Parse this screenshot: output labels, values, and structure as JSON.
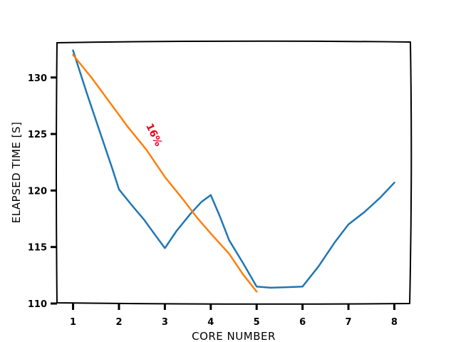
{
  "chart_data": {
    "type": "line",
    "title": "",
    "xlabel": "CORE NUMBER",
    "ylabel": "ELAPSED TIME [S]",
    "xlim": [
      0.65,
      8.35
    ],
    "ylim": [
      110,
      133.2
    ],
    "xticks": [
      1,
      2,
      3,
      4,
      5,
      6,
      7,
      8
    ],
    "yticks": [
      110,
      115,
      120,
      125,
      130
    ],
    "grid": false,
    "series": [
      {
        "color": "#1f77b4",
        "points": [
          [
            1,
            132.4
          ],
          [
            1.3,
            128.6
          ],
          [
            1.6,
            125
          ],
          [
            1.85,
            122
          ],
          [
            2,
            120.1
          ],
          [
            2.3,
            118.6
          ],
          [
            2.55,
            117.4
          ],
          [
            2.8,
            116.0
          ],
          [
            3,
            114.9
          ],
          [
            3.25,
            116.4
          ],
          [
            3.55,
            117.9
          ],
          [
            3.8,
            119
          ],
          [
            4,
            119.6
          ],
          [
            4.2,
            117.7
          ],
          [
            4.4,
            115.6
          ],
          [
            4.7,
            113.6
          ],
          [
            5,
            111.5
          ],
          [
            5.3,
            111.4
          ],
          [
            5.7,
            111.45
          ],
          [
            6,
            111.5
          ],
          [
            6.35,
            113.3
          ],
          [
            6.7,
            115.4
          ],
          [
            7,
            117
          ],
          [
            7.35,
            118.1
          ],
          [
            7.7,
            119.4
          ],
          [
            8,
            120.7
          ]
        ]
      },
      {
        "color": "#ff7f0e",
        "points": [
          [
            1,
            132
          ],
          [
            1.4,
            130
          ],
          [
            1.8,
            127.8
          ],
          [
            2.2,
            125.6
          ],
          [
            2.6,
            123.6
          ],
          [
            3,
            121.2
          ],
          [
            3.4,
            119.2
          ],
          [
            3.7,
            117.6
          ],
          [
            4,
            116.2
          ],
          [
            4.4,
            114.4
          ],
          [
            4.7,
            112.6
          ],
          [
            5,
            111.05
          ]
        ]
      }
    ],
    "annotations": [
      {
        "text": "16%",
        "x": 2.7,
        "y": 124.8,
        "rotation": -64,
        "color": "#e8001c"
      }
    ]
  }
}
